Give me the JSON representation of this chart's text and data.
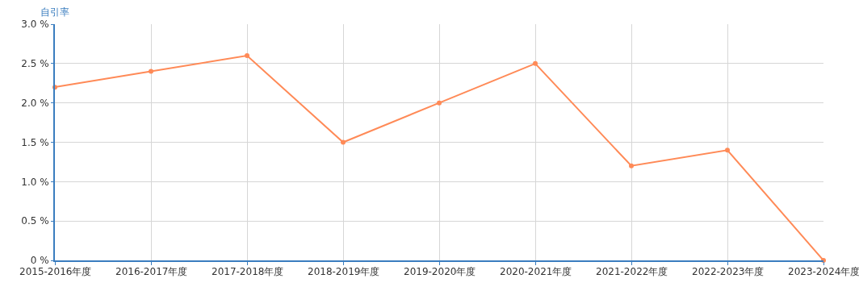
{
  "chart_data": {
    "type": "line",
    "ylabel": "自引率",
    "categories": [
      "2015-2016年度",
      "2016-2017年度",
      "2017-2018年度",
      "2018-2019年度",
      "2019-2020年度",
      "2020-2021年度",
      "2021-2022年度",
      "2022-2023年度",
      "2023-2024年度"
    ],
    "series": [
      {
        "color": "#ff8a57",
        "values": [
          2.2,
          2.4,
          2.6,
          1.5,
          2.0,
          2.5,
          1.2,
          1.4,
          0
        ]
      }
    ],
    "ylim": [
      0,
      3.0
    ],
    "yticks": [
      {
        "value": 0,
        "label": "0 %"
      },
      {
        "value": 0.5,
        "label": "0.5 %"
      },
      {
        "value": 1.0,
        "label": "1.0 %"
      },
      {
        "value": 1.5,
        "label": "1.5 %"
      },
      {
        "value": 2.0,
        "label": "2.0 %"
      },
      {
        "value": 2.5,
        "label": "2.5 %"
      },
      {
        "value": 3.0,
        "label": "3.0 %"
      }
    ],
    "grid": true,
    "marker": "circle",
    "line_style": "solid"
  }
}
